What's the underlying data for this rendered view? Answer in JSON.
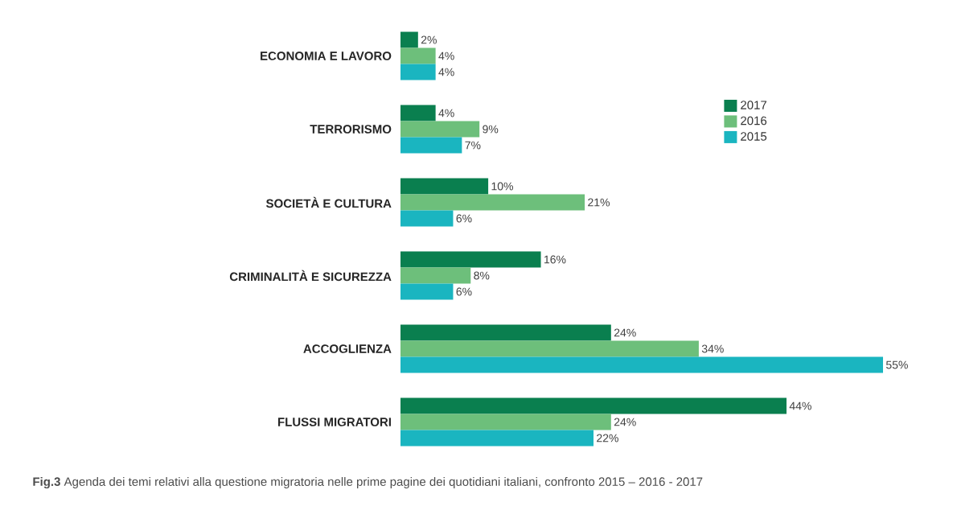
{
  "chart_data": {
    "type": "bar",
    "orientation": "horizontal",
    "categories": [
      "ECONOMIA E LAVORO",
      "TERRORISMO",
      "SOCIETÀ E CULTURA",
      "CRIMINALITÀ E SICUREZZA",
      "ACCOGLIENZA",
      "FLUSSI MIGRATORI"
    ],
    "series": [
      {
        "name": "2017",
        "color": "#0a7f4f",
        "values": [
          2,
          4,
          10,
          16,
          24,
          44
        ],
        "value_labels": [
          "2%",
          "4%",
          "10%",
          "16%",
          "24%",
          "44%"
        ]
      },
      {
        "name": "2016",
        "color": "#6dbf7b",
        "values": [
          4,
          9,
          21,
          8,
          34,
          24
        ],
        "value_labels": [
          "4%",
          "9%",
          "21%",
          "8%",
          "34%",
          "24%"
        ]
      },
      {
        "name": "2015",
        "color": "#1ab5c0",
        "values": [
          4,
          7,
          6,
          6,
          55,
          22
        ],
        "value_labels": [
          "4%",
          "7%",
          "6%",
          "6%",
          "55%",
          "22%"
        ]
      }
    ],
    "legend": "top right",
    "tick_labels": "y",
    "annotations": [
      "**Fig.3** Agenda dei temi relativi alla questione migratoria nelle prime pagine dei quotidiani italiani, confronto 2015 – 2016 - 2017"
    ]
  }
}
